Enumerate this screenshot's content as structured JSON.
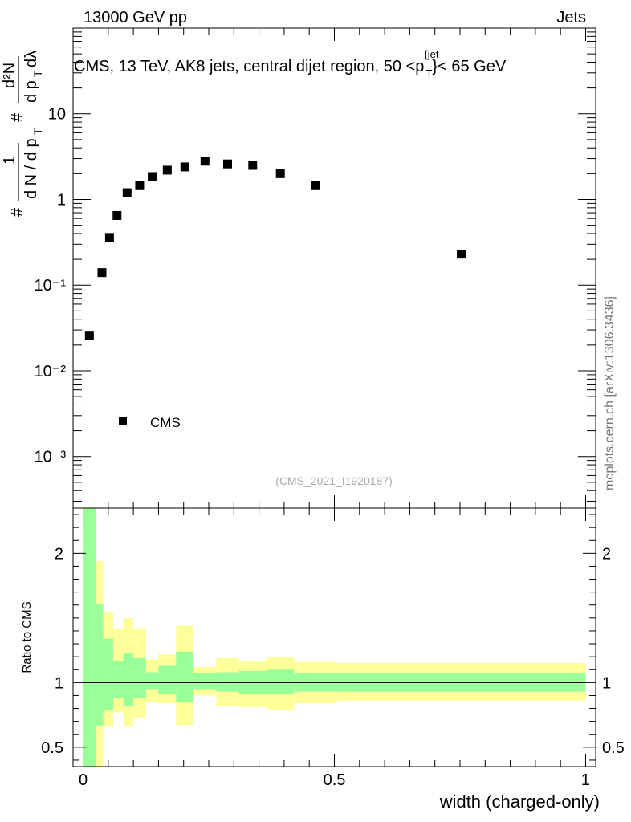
{
  "header": {
    "left": "13000 GeV pp",
    "right": "Jets"
  },
  "title_prefix": "CMS, 13 TeV, AK8 jets, central dijet region, 50 <",
  "title_var": "p",
  "title_sup": "{jet",
  "title_sub": "T",
  "title_suffix": "}< 65 GeV",
  "side_label": "mcplots.cern.ch [arXiv:1306.3436]",
  "analysis_id": "(CMS_2021_I1920187)",
  "legend": {
    "label": "CMS"
  },
  "colors": {
    "marker": "#000000",
    "inner_band": "#99ff99",
    "outer_band": "#ffff99"
  },
  "chart_data": [
    {
      "type": "scatter",
      "name": "main",
      "yscale": "log",
      "ylim": [
        0.00025,
        100
      ],
      "xlim": [
        -0.02,
        1.02
      ],
      "ylabel": "# 1 / dN / dpT # d²N / dpT dλ",
      "ytick_labels": [
        "10⁻³",
        "10⁻²",
        "10⁻¹",
        "1",
        "10"
      ],
      "series": [
        {
          "name": "CMS",
          "x": [
            0.0125,
            0.0375,
            0.0525,
            0.0675,
            0.0875,
            0.1125,
            0.1375,
            0.1675,
            0.2025,
            0.2425,
            0.2875,
            0.3375,
            0.3925,
            0.4625,
            0.7525
          ],
          "y": [
            0.026,
            0.14,
            0.36,
            0.65,
            1.2,
            1.45,
            1.85,
            2.2,
            2.4,
            2.8,
            2.6,
            2.5,
            2.0,
            1.45,
            0.23
          ]
        }
      ]
    },
    {
      "type": "area",
      "name": "ratio",
      "ylabel": "Ratio to CMS",
      "xlabel": "width (charged-only)",
      "ylim": [
        0.35,
        2.35
      ],
      "xlim": [
        -0.02,
        1.02
      ],
      "yticks": [
        0.5,
        1,
        2
      ],
      "ytick_labels": [
        "0.5",
        "1",
        "2"
      ],
      "xticks": [
        0,
        0.5,
        1
      ],
      "xtick_labels": [
        "0",
        "0.5",
        "1"
      ],
      "reference_line": 1,
      "bins": [
        {
          "lo": 0.0,
          "hi": 0.025,
          "inner": [
            0.2,
            2.4
          ],
          "outer": [
            0.2,
            2.4
          ]
        },
        {
          "lo": 0.025,
          "hi": 0.04,
          "inner": [
            0.67,
            1.61
          ],
          "outer": [
            0.3,
            1.94
          ]
        },
        {
          "lo": 0.04,
          "hi": 0.06,
          "inner": [
            0.79,
            1.34
          ],
          "outer": [
            0.66,
            1.54
          ]
        },
        {
          "lo": 0.06,
          "hi": 0.08,
          "inner": [
            0.88,
            1.17
          ],
          "outer": [
            0.77,
            1.42
          ]
        },
        {
          "lo": 0.08,
          "hi": 0.1,
          "inner": [
            0.82,
            1.23
          ],
          "outer": [
            0.66,
            1.5
          ]
        },
        {
          "lo": 0.1,
          "hi": 0.125,
          "inner": [
            0.88,
            1.19
          ],
          "outer": [
            0.73,
            1.42
          ]
        },
        {
          "lo": 0.125,
          "hi": 0.15,
          "inner": [
            0.95,
            1.08
          ],
          "outer": [
            0.85,
            1.18
          ]
        },
        {
          "lo": 0.15,
          "hi": 0.185,
          "inner": [
            0.91,
            1.13
          ],
          "outer": [
            0.84,
            1.22
          ]
        },
        {
          "lo": 0.185,
          "hi": 0.22,
          "inner": [
            0.85,
            1.24
          ],
          "outer": [
            0.67,
            1.44
          ]
        },
        {
          "lo": 0.22,
          "hi": 0.265,
          "inner": [
            0.95,
            1.07
          ],
          "outer": [
            0.9,
            1.12
          ]
        },
        {
          "lo": 0.265,
          "hi": 0.31,
          "inner": [
            0.93,
            1.08
          ],
          "outer": [
            0.82,
            1.19
          ]
        },
        {
          "lo": 0.31,
          "hi": 0.365,
          "inner": [
            0.91,
            1.09
          ],
          "outer": [
            0.81,
            1.17
          ]
        },
        {
          "lo": 0.365,
          "hi": 0.42,
          "inner": [
            0.91,
            1.1
          ],
          "outer": [
            0.79,
            1.2
          ]
        },
        {
          "lo": 0.42,
          "hi": 0.505,
          "inner": [
            0.93,
            1.07
          ],
          "outer": [
            0.84,
            1.16
          ]
        },
        {
          "lo": 0.505,
          "hi": 1.0,
          "inner": [
            0.93,
            1.07
          ],
          "outer": [
            0.86,
            1.15
          ]
        }
      ]
    }
  ]
}
